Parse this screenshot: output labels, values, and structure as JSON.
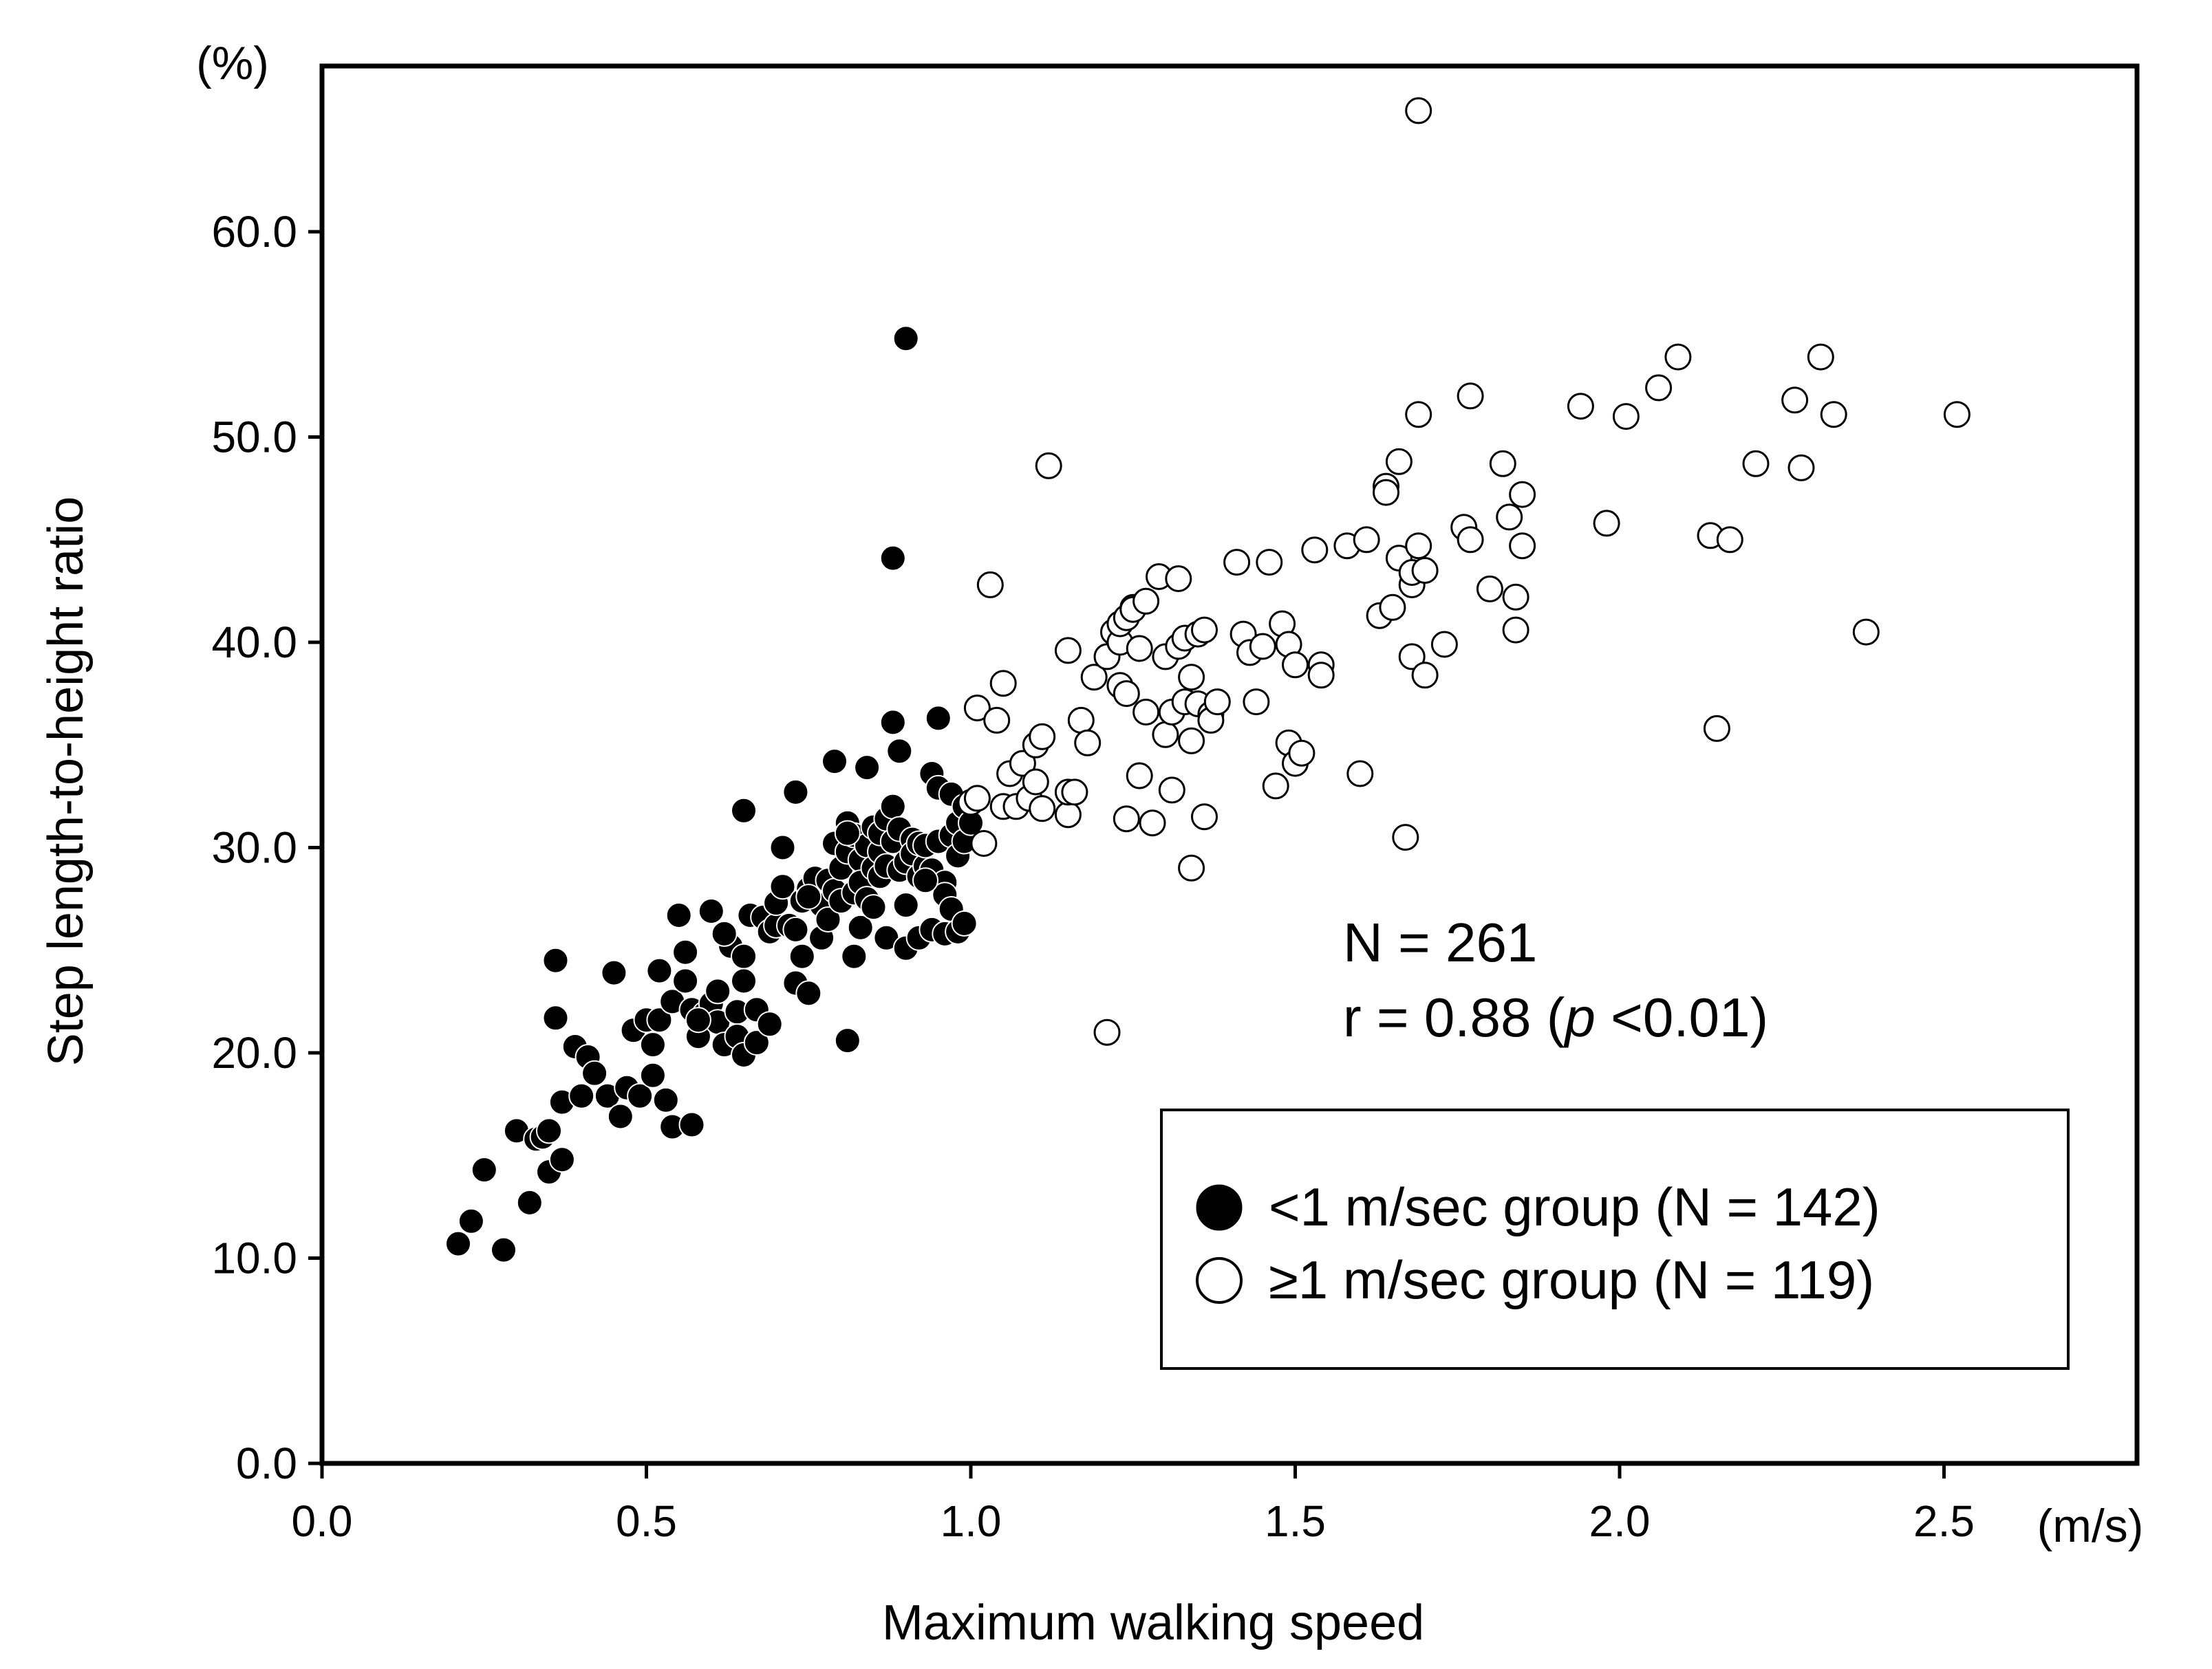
{
  "chart_data": {
    "type": "scatter",
    "title": "",
    "xlabel": "Maximum walking speed",
    "ylabel": "Step length-to-height ratio",
    "x_unit": "(m/s)",
    "y_unit": "(%)",
    "xlim": [
      0,
      2.8
    ],
    "ylim": [
      0,
      68
    ],
    "x_ticks": [
      "0.0",
      "0.5",
      "1.0",
      "1.5",
      "2.0",
      "2.5"
    ],
    "y_ticks": [
      "0.0",
      "10.0",
      "20.0",
      "30.0",
      "40.0",
      "50.0",
      "60.0"
    ],
    "grid": false,
    "stats": {
      "n": "N = 261",
      "r_prefix": "r = 0.88 (",
      "r_p": "p",
      "r_suffix": " <0.01)"
    },
    "legend_position": "bottom-right",
    "series": [
      {
        "name": "<1 m/sec group (N = 142)",
        "marker": "filled-circle",
        "color": "#000000",
        "points": [
          [
            0.21,
            10.7
          ],
          [
            0.23,
            11.8
          ],
          [
            0.25,
            14.3
          ],
          [
            0.28,
            10.4
          ],
          [
            0.3,
            16.2
          ],
          [
            0.32,
            12.7
          ],
          [
            0.33,
            15.8
          ],
          [
            0.34,
            15.9
          ],
          [
            0.35,
            14.2
          ],
          [
            0.35,
            16.2
          ],
          [
            0.36,
            21.7
          ],
          [
            0.36,
            24.5
          ],
          [
            0.37,
            14.8
          ],
          [
            0.37,
            17.6
          ],
          [
            0.39,
            20.3
          ],
          [
            0.4,
            17.9
          ],
          [
            0.41,
            19.8
          ],
          [
            0.42,
            19.0
          ],
          [
            0.44,
            17.9
          ],
          [
            0.45,
            23.9
          ],
          [
            0.46,
            16.9
          ],
          [
            0.47,
            18.3
          ],
          [
            0.48,
            21.1
          ],
          [
            0.49,
            17.9
          ],
          [
            0.5,
            21.6
          ],
          [
            0.51,
            20.4
          ],
          [
            0.51,
            18.9
          ],
          [
            0.52,
            21.6
          ],
          [
            0.52,
            24.0
          ],
          [
            0.53,
            17.7
          ],
          [
            0.54,
            22.5
          ],
          [
            0.54,
            16.4
          ],
          [
            0.55,
            26.7
          ],
          [
            0.56,
            23.5
          ],
          [
            0.56,
            24.9
          ],
          [
            0.57,
            16.5
          ],
          [
            0.57,
            22.1
          ],
          [
            0.58,
            20.8
          ],
          [
            0.59,
            21.9
          ],
          [
            0.6,
            22.4
          ],
          [
            0.6,
            26.9
          ],
          [
            0.61,
            21.5
          ],
          [
            0.61,
            23.0
          ],
          [
            0.62,
            20.4
          ],
          [
            0.63,
            25.2
          ],
          [
            0.64,
            22.0
          ],
          [
            0.64,
            20.8
          ],
          [
            0.65,
            24.7
          ],
          [
            0.65,
            23.5
          ],
          [
            0.65,
            19.9
          ],
          [
            0.65,
            31.8
          ],
          [
            0.66,
            26.7
          ],
          [
            0.67,
            22.1
          ],
          [
            0.67,
            20.5
          ],
          [
            0.68,
            26.6
          ],
          [
            0.69,
            25.9
          ],
          [
            0.69,
            21.4
          ],
          [
            0.7,
            26.2
          ],
          [
            0.7,
            27.3
          ],
          [
            0.71,
            28.1
          ],
          [
            0.71,
            30.0
          ],
          [
            0.72,
            26.2
          ],
          [
            0.73,
            32.7
          ],
          [
            0.73,
            26.0
          ],
          [
            0.73,
            23.4
          ],
          [
            0.74,
            24.7
          ],
          [
            0.74,
            27.4
          ],
          [
            0.75,
            28.0
          ],
          [
            0.75,
            22.9
          ],
          [
            0.76,
            28.5
          ],
          [
            0.77,
            27.2
          ],
          [
            0.77,
            25.6
          ],
          [
            0.78,
            28.4
          ],
          [
            0.78,
            26.5
          ],
          [
            0.79,
            34.2
          ],
          [
            0.79,
            30.2
          ],
          [
            0.79,
            27.9
          ],
          [
            0.8,
            29.0
          ],
          [
            0.8,
            27.4
          ],
          [
            0.81,
            31.2
          ],
          [
            0.81,
            29.8
          ],
          [
            0.81,
            20.6
          ],
          [
            0.82,
            30.6
          ],
          [
            0.82,
            27.8
          ],
          [
            0.82,
            24.7
          ],
          [
            0.83,
            29.4
          ],
          [
            0.83,
            26.1
          ],
          [
            0.83,
            28.3
          ],
          [
            0.84,
            30.1
          ],
          [
            0.84,
            27.5
          ],
          [
            0.84,
            33.9
          ],
          [
            0.85,
            29.0
          ],
          [
            0.85,
            27.1
          ],
          [
            0.85,
            31.0
          ],
          [
            0.86,
            29.8
          ],
          [
            0.86,
            30.7
          ],
          [
            0.86,
            28.6
          ],
          [
            0.87,
            31.4
          ],
          [
            0.87,
            29.1
          ],
          [
            0.87,
            25.6
          ],
          [
            0.88,
            44.1
          ],
          [
            0.88,
            36.1
          ],
          [
            0.88,
            32.0
          ],
          [
            0.88,
            30.3
          ],
          [
            0.89,
            34.7
          ],
          [
            0.89,
            28.9
          ],
          [
            0.89,
            30.9
          ],
          [
            0.9,
            54.8
          ],
          [
            0.9,
            29.3
          ],
          [
            0.9,
            27.2
          ],
          [
            0.9,
            25.1
          ],
          [
            0.91,
            30.4
          ],
          [
            0.91,
            29.7
          ],
          [
            0.92,
            28.6
          ],
          [
            0.92,
            30.2
          ],
          [
            0.92,
            25.6
          ],
          [
            0.93,
            29.1
          ],
          [
            0.93,
            30.1
          ],
          [
            0.94,
            33.6
          ],
          [
            0.94,
            28.9
          ],
          [
            0.94,
            26.0
          ],
          [
            0.95,
            36.3
          ],
          [
            0.95,
            30.3
          ],
          [
            0.95,
            32.9
          ],
          [
            0.96,
            28.3
          ],
          [
            0.96,
            27.7
          ],
          [
            0.96,
            25.8
          ],
          [
            0.97,
            32.6
          ],
          [
            0.97,
            30.6
          ],
          [
            0.97,
            27.0
          ],
          [
            0.98,
            29.6
          ],
          [
            0.98,
            31.2
          ],
          [
            0.98,
            25.9
          ],
          [
            0.99,
            32.0
          ],
          [
            0.99,
            26.3
          ],
          [
            0.99,
            30.3
          ],
          [
            1.0,
            31.2
          ],
          [
            0.75,
            27.6
          ],
          [
            0.62,
            25.8
          ],
          [
            0.58,
            21.6
          ],
          [
            0.81,
            30.7
          ],
          [
            0.93,
            28.4
          ]
        ]
      },
      {
        "name": "≥1 m/sec group (N = 119)",
        "marker": "open-circle",
        "color": "#000000",
        "points": [
          [
            1.0,
            32.2
          ],
          [
            1.01,
            32.4
          ],
          [
            1.01,
            36.8
          ],
          [
            1.02,
            30.2
          ],
          [
            1.03,
            42.8
          ],
          [
            1.04,
            36.2
          ],
          [
            1.05,
            38.0
          ],
          [
            1.05,
            32.0
          ],
          [
            1.06,
            33.6
          ],
          [
            1.07,
            32.0
          ],
          [
            1.08,
            34.1
          ],
          [
            1.09,
            32.4
          ],
          [
            1.1,
            33.2
          ],
          [
            1.1,
            35.0
          ],
          [
            1.11,
            35.4
          ],
          [
            1.11,
            31.9
          ],
          [
            1.12,
            48.6
          ],
          [
            1.15,
            39.6
          ],
          [
            1.15,
            31.6
          ],
          [
            1.15,
            32.7
          ],
          [
            1.16,
            32.7
          ],
          [
            1.17,
            36.2
          ],
          [
            1.18,
            35.1
          ],
          [
            1.19,
            38.3
          ],
          [
            1.21,
            21.0
          ],
          [
            1.21,
            39.3
          ],
          [
            1.22,
            40.5
          ],
          [
            1.23,
            37.9
          ],
          [
            1.23,
            40.0
          ],
          [
            1.23,
            40.9
          ],
          [
            1.24,
            41.2
          ],
          [
            1.24,
            37.5
          ],
          [
            1.24,
            31.4
          ],
          [
            1.25,
            41.7
          ],
          [
            1.25,
            41.6
          ],
          [
            1.26,
            33.5
          ],
          [
            1.26,
            39.7
          ],
          [
            1.27,
            42.0
          ],
          [
            1.27,
            36.6
          ],
          [
            1.28,
            31.2
          ],
          [
            1.29,
            43.2
          ],
          [
            1.3,
            39.3
          ],
          [
            1.3,
            35.5
          ],
          [
            1.31,
            36.6
          ],
          [
            1.31,
            32.8
          ],
          [
            1.32,
            43.1
          ],
          [
            1.32,
            39.8
          ],
          [
            1.33,
            40.2
          ],
          [
            1.33,
            37.1
          ],
          [
            1.34,
            29.0
          ],
          [
            1.34,
            38.3
          ],
          [
            1.34,
            35.2
          ],
          [
            1.35,
            40.4
          ],
          [
            1.35,
            37.0
          ],
          [
            1.36,
            40.6
          ],
          [
            1.36,
            31.5
          ],
          [
            1.37,
            36.5
          ],
          [
            1.37,
            36.2
          ],
          [
            1.38,
            37.1
          ],
          [
            1.41,
            43.9
          ],
          [
            1.42,
            40.4
          ],
          [
            1.43,
            39.5
          ],
          [
            1.44,
            37.1
          ],
          [
            1.45,
            39.8
          ],
          [
            1.46,
            43.9
          ],
          [
            1.47,
            33.0
          ],
          [
            1.48,
            40.9
          ],
          [
            1.49,
            35.1
          ],
          [
            1.49,
            39.9
          ],
          [
            1.5,
            34.1
          ],
          [
            1.5,
            38.9
          ],
          [
            1.51,
            34.6
          ],
          [
            1.53,
            44.5
          ],
          [
            1.54,
            38.9
          ],
          [
            1.54,
            38.4
          ],
          [
            1.58,
            44.7
          ],
          [
            1.6,
            33.6
          ],
          [
            1.61,
            45.0
          ],
          [
            1.63,
            41.3
          ],
          [
            1.64,
            47.6
          ],
          [
            1.64,
            47.3
          ],
          [
            1.65,
            41.7
          ],
          [
            1.66,
            48.8
          ],
          [
            1.66,
            44.1
          ],
          [
            1.67,
            30.5
          ],
          [
            1.68,
            39.3
          ],
          [
            1.68,
            42.8
          ],
          [
            1.68,
            43.4
          ],
          [
            1.69,
            65.9
          ],
          [
            1.69,
            44.7
          ],
          [
            1.69,
            51.1
          ],
          [
            1.7,
            43.5
          ],
          [
            1.7,
            38.4
          ],
          [
            1.73,
            39.9
          ],
          [
            1.76,
            45.6
          ],
          [
            1.77,
            52.0
          ],
          [
            1.77,
            45.0
          ],
          [
            1.8,
            42.6
          ],
          [
            1.82,
            48.7
          ],
          [
            1.83,
            46.1
          ],
          [
            1.84,
            42.2
          ],
          [
            1.84,
            40.6
          ],
          [
            1.85,
            47.2
          ],
          [
            1.85,
            44.7
          ],
          [
            1.94,
            51.5
          ],
          [
            1.98,
            45.8
          ],
          [
            2.01,
            51.0
          ],
          [
            2.06,
            52.4
          ],
          [
            2.09,
            53.9
          ],
          [
            2.14,
            45.2
          ],
          [
            2.15,
            35.8
          ],
          [
            2.17,
            45.0
          ],
          [
            2.21,
            48.7
          ],
          [
            2.27,
            51.8
          ],
          [
            2.28,
            48.5
          ],
          [
            2.31,
            53.9
          ],
          [
            2.33,
            51.1
          ],
          [
            2.38,
            40.5
          ],
          [
            2.52,
            51.1
          ]
        ]
      }
    ]
  }
}
